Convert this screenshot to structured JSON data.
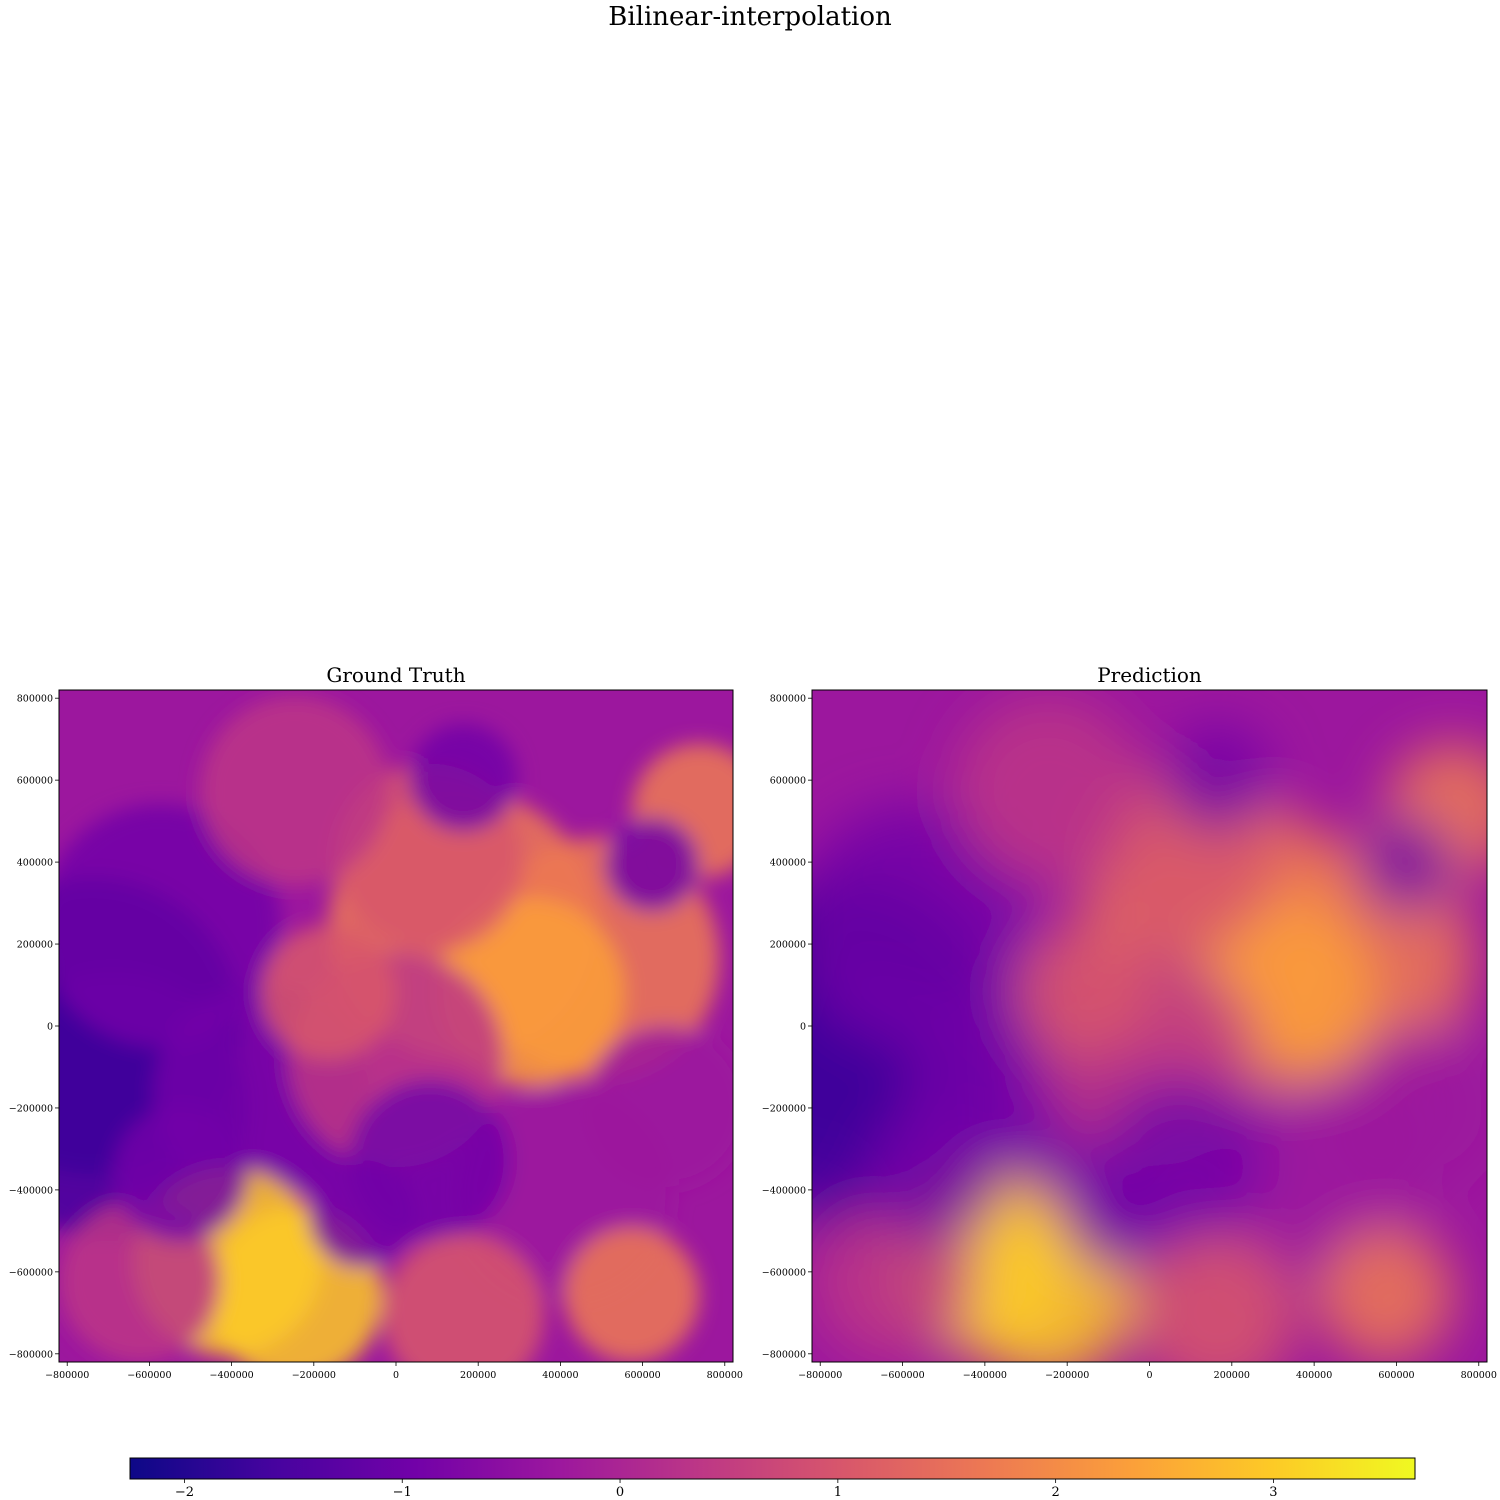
{
  "title": "Bilinear-interpolation",
  "chart_data": [
    {
      "type": "heatmap",
      "title": "Ground Truth",
      "xlabel": "",
      "ylabel": "",
      "xlim": [
        -820000,
        820000
      ],
      "ylim": [
        -820000,
        820000
      ],
      "x_ticks": [
        "−800000",
        "−600000",
        "−400000",
        "−200000",
        "0",
        "200000",
        "400000",
        "600000",
        "800000"
      ],
      "y_ticks": [
        "800000",
        "600000",
        "400000",
        "200000",
        "0",
        "−200000",
        "−400000",
        "−600000",
        "−800000"
      ],
      "colormap": "plasma",
      "grid": false
    },
    {
      "type": "heatmap",
      "title": "Prediction",
      "xlabel": "",
      "ylabel": "",
      "xlim": [
        -820000,
        820000
      ],
      "ylim": [
        -820000,
        820000
      ],
      "x_ticks": [
        "−800000",
        "−600000",
        "−400000",
        "−200000",
        "0",
        "200000",
        "400000",
        "600000",
        "800000"
      ],
      "y_ticks": [
        "800000",
        "600000",
        "400000",
        "200000",
        "0",
        "−200000",
        "−400000",
        "−600000",
        "−800000"
      ],
      "colormap": "plasma",
      "grid": false
    }
  ],
  "colorbar": {
    "range": [
      -2.25,
      3.65
    ],
    "ticks": [
      "−2",
      "−1",
      "0",
      "1",
      "2",
      "3"
    ],
    "colors": [
      "#0d0887",
      "#46039f",
      "#7201a8",
      "#9c179e",
      "#bd3786",
      "#d8576b",
      "#ed7953",
      "#fb9f3a",
      "#fdca26",
      "#f0f921"
    ]
  }
}
